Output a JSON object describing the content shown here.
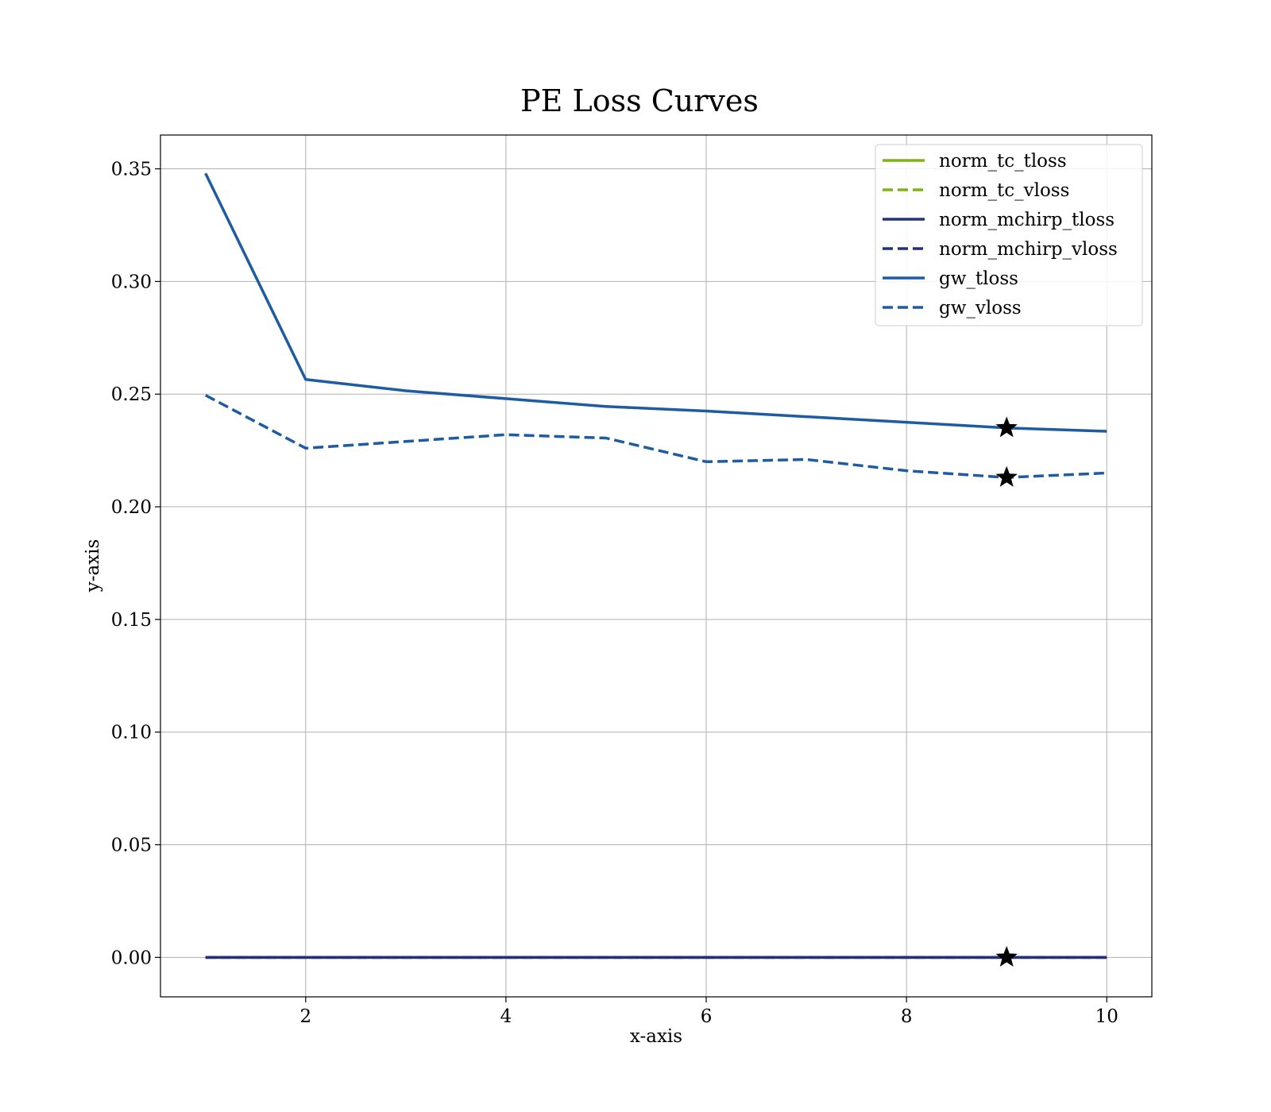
{
  "chart_data": {
    "type": "line",
    "title": "PE Loss Curves",
    "xlabel": "x-axis",
    "ylabel": "y-axis",
    "xlim": [
      0.55,
      10.45
    ],
    "ylim": [
      -0.0175,
      0.365
    ],
    "xticks": [
      2,
      4,
      6,
      8,
      10
    ],
    "yticks": [
      0.0,
      0.05,
      0.1,
      0.15,
      0.2,
      0.25,
      0.3,
      0.35
    ],
    "xtick_labels": [
      "2",
      "4",
      "6",
      "8",
      "10"
    ],
    "ytick_labels": [
      "0.00",
      "0.05",
      "0.10",
      "0.15",
      "0.20",
      "0.25",
      "0.30",
      "0.35"
    ],
    "grid": true,
    "legend_position": "top-right",
    "x": [
      1,
      2,
      3,
      4,
      5,
      6,
      7,
      8,
      9,
      10
    ],
    "series": [
      {
        "name": "norm_tc_tloss",
        "style": "solid",
        "color": "#7db510",
        "values": [
          0,
          0,
          0,
          0,
          0,
          0,
          0,
          0,
          0,
          0
        ]
      },
      {
        "name": "norm_tc_vloss",
        "style": "dashed",
        "color": "#7db510",
        "values": [
          0,
          0,
          0,
          0,
          0,
          0,
          0,
          0,
          0,
          0
        ]
      },
      {
        "name": "norm_mchirp_tloss",
        "style": "solid",
        "color": "#25307a",
        "values": [
          0,
          0,
          0,
          0,
          0,
          0,
          0,
          0,
          0,
          0
        ]
      },
      {
        "name": "norm_mchirp_vloss",
        "style": "dashed",
        "color": "#25307a",
        "values": [
          0,
          0,
          0,
          0,
          0,
          0,
          0,
          0,
          0,
          0
        ]
      },
      {
        "name": "gw_tloss",
        "style": "solid",
        "color": "#1f5ba3",
        "values": [
          0.348,
          0.2565,
          0.2515,
          0.248,
          0.2445,
          0.2425,
          0.24,
          0.2375,
          0.235,
          0.2335
        ]
      },
      {
        "name": "gw_vloss",
        "style": "dashed",
        "color": "#1f5ba3",
        "values": [
          0.2495,
          0.226,
          0.229,
          0.232,
          0.2305,
          0.22,
          0.221,
          0.216,
          0.213,
          0.215
        ]
      }
    ],
    "markers": [
      {
        "x": 9,
        "y": 0.235,
        "symbol": "star",
        "color": "#000000"
      },
      {
        "x": 9,
        "y": 0.213,
        "symbol": "star",
        "color": "#000000"
      },
      {
        "x": 9,
        "y": 0.0,
        "symbol": "star",
        "color": "#000000"
      }
    ]
  }
}
